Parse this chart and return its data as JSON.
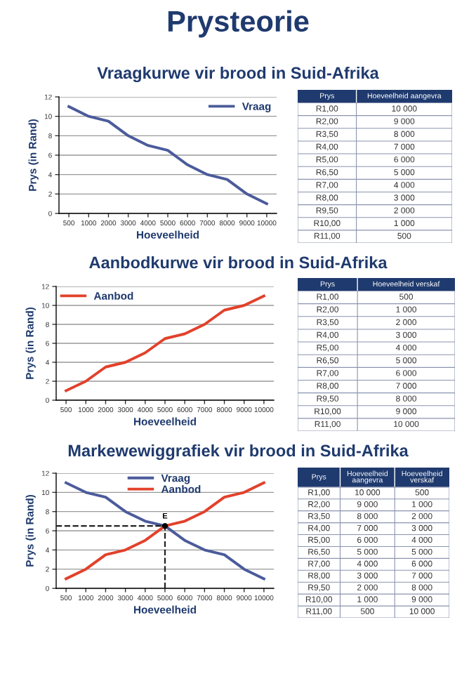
{
  "chart_data": [
    {
      "type": "other",
      "title": "Prysteorie"
    },
    {
      "type": "line",
      "title": "Vraagkurwe vir brood in Suid-Afrika",
      "xlabel": "Hoeveelheid",
      "ylabel": "Prys (in Rand)",
      "categories": [
        "500",
        "1000",
        "2000",
        "3000",
        "4000",
        "5000",
        "6000",
        "7000",
        "8000",
        "9000",
        "10000"
      ],
      "series": [
        {
          "name": "Vraag",
          "color": "#4b5b9b",
          "values": [
            11,
            10,
            9.5,
            8,
            7,
            6.5,
            5,
            4,
            3.5,
            2,
            1
          ]
        }
      ],
      "ylim": [
        0,
        12
      ],
      "yticks": [
        0,
        2,
        4,
        6,
        8,
        10,
        12
      ],
      "grid": "y",
      "legend": "top right",
      "marker": "none",
      "line_style": "solid"
    },
    {
      "type": "other",
      "categories": [
        "Prys",
        "Hoeveelheid aangevra"
      ],
      "cell_labels": [
        [
          "R1,00",
          "10 000"
        ],
        [
          "R2,00",
          "9 000"
        ],
        [
          "R3,50",
          "8 000"
        ],
        [
          "R4,00",
          "7 000"
        ],
        [
          "R5,00",
          "6 000"
        ],
        [
          "R6,50",
          "5 000"
        ],
        [
          "R7,00",
          "4 000"
        ],
        [
          "R8,00",
          "3 000"
        ],
        [
          "R9,50",
          "2 000"
        ],
        [
          "R10,00",
          "1 000"
        ],
        [
          "R11,00",
          "500"
        ]
      ]
    },
    {
      "type": "line",
      "title": "Aanbodkurwe vir brood in Suid-Afrika",
      "xlabel": "Hoeveelheid",
      "ylabel": "Prys (in Rand)",
      "categories": [
        "500",
        "1000",
        "2000",
        "3000",
        "4000",
        "5000",
        "6000",
        "7000",
        "8000",
        "9000",
        "10000"
      ],
      "series": [
        {
          "name": "Aanbod",
          "color": "#e2412b",
          "values": [
            1,
            2,
            3.5,
            4,
            5,
            6.5,
            7,
            8,
            9.5,
            10,
            11
          ]
        }
      ],
      "ylim": [
        0,
        12
      ],
      "yticks": [
        0,
        2,
        4,
        6,
        8,
        10,
        12
      ],
      "grid": "y",
      "legend": "top left",
      "marker": "none",
      "line_style": "solid"
    },
    {
      "type": "other",
      "categories": [
        "Prys",
        "Hoeveelheid verskaf"
      ],
      "cell_labels": [
        [
          "R1,00",
          "500"
        ],
        [
          "R2,00",
          "1 000"
        ],
        [
          "R3,50",
          "2 000"
        ],
        [
          "R4,00",
          "3 000"
        ],
        [
          "R5,00",
          "4 000"
        ],
        [
          "R6,50",
          "5 000"
        ],
        [
          "R7,00",
          "6 000"
        ],
        [
          "R8,00",
          "7 000"
        ],
        [
          "R9,50",
          "8 000"
        ],
        [
          "R10,00",
          "9 000"
        ],
        [
          "R11,00",
          "10 000"
        ]
      ]
    },
    {
      "type": "line",
      "title": "Markewewiggrafiek vir brood in Suid-Afrika",
      "xlabel": "Hoeveelheid",
      "ylabel": "Prys (in Rand)",
      "categories": [
        "500",
        "1000",
        "2000",
        "3000",
        "4000",
        "5000",
        "6000",
        "7000",
        "8000",
        "9000",
        "10000"
      ],
      "series": [
        {
          "name": "Vraag",
          "color": "#4b5b9b",
          "values": [
            11,
            10,
            9.5,
            8,
            7,
            6.5,
            5,
            4,
            3.5,
            2,
            1
          ]
        },
        {
          "name": "Aanbod",
          "color": "#e2412b",
          "values": [
            1,
            2,
            3.5,
            4,
            5,
            6.5,
            7,
            8,
            9.5,
            10,
            11
          ]
        }
      ],
      "ref_lines": [
        {
          "axis": "y",
          "value": 6.5,
          "line_style": "dashed",
          "color": "#222222"
        },
        {
          "axis": "x",
          "value": "5000",
          "line_style": "dashed",
          "color": "#222222"
        }
      ],
      "annotations": [
        {
          "text": "E",
          "x": "5000",
          "y": 6.5
        }
      ],
      "ylim": [
        0,
        12
      ],
      "yticks": [
        0,
        2,
        4,
        6,
        8,
        10,
        12
      ],
      "grid": "y",
      "legend": "top",
      "marker": "none",
      "line_style": "solid"
    },
    {
      "type": "other",
      "categories": [
        "Prys",
        "Hoeveelheid\naangevra",
        "Hoeveelheid\nverskaf"
      ],
      "cell_labels": [
        [
          "R1,00",
          "10 000",
          "500"
        ],
        [
          "R2,00",
          "9 000",
          "1 000"
        ],
        [
          "R3,50",
          "8 000",
          "2 000"
        ],
        [
          "R4,00",
          "7 000",
          "3 000"
        ],
        [
          "R5,00",
          "6 000",
          "4 000"
        ],
        [
          "R6,50",
          "5 000",
          "5 000"
        ],
        [
          "R7,00",
          "4 000",
          "6 000"
        ],
        [
          "R8,00",
          "3 000",
          "7 000"
        ],
        [
          "R9,50",
          "2 000",
          "8 000"
        ],
        [
          "R10,00",
          "1 000",
          "9 000"
        ],
        [
          "R11,00",
          "500",
          "10 000"
        ]
      ]
    }
  ]
}
